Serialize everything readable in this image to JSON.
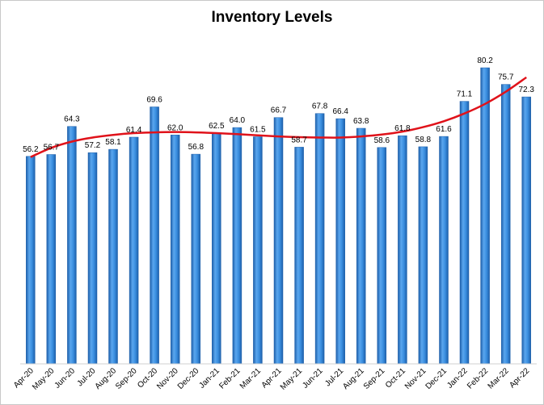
{
  "chart_data": {
    "type": "bar",
    "title": "Inventory Levels",
    "xlabel": "",
    "ylabel": "",
    "categories": [
      "Apr-20",
      "May-20",
      "Jun-20",
      "Jul-20",
      "Aug-20",
      "Sep-20",
      "Oct-20",
      "Nov-20",
      "Dec-20",
      "Jan-21",
      "Feb-21",
      "Mar-21",
      "Apr-21",
      "May-21",
      "Jun-21",
      "Jul-21",
      "Aug-21",
      "Sep-21",
      "Oct-21",
      "Nov-21",
      "Dec-21",
      "Jan-22",
      "Feb-22",
      "Mar-22",
      "Apr-22"
    ],
    "values": [
      56.2,
      56.7,
      64.3,
      57.2,
      58.1,
      61.4,
      69.6,
      62.0,
      56.8,
      62.5,
      64.0,
      61.5,
      66.7,
      58.7,
      67.8,
      66.4,
      63.8,
      58.6,
      61.8,
      58.8,
      61.6,
      71.1,
      80.2,
      75.7,
      72.3
    ],
    "value_labels": [
      "56.2",
      "56.7",
      "64.3",
      "57.2",
      "58.1",
      "61.4",
      "69.6",
      "62.0",
      "56.8",
      "62.5",
      "64.0",
      "61.5",
      "66.7",
      "58.7",
      "67.8",
      "66.4",
      "63.8",
      "58.6",
      "61.8",
      "58.8",
      "61.6",
      "71.1",
      "80.2",
      "75.7",
      "72.3"
    ],
    "trendline": {
      "type": "polynomial",
      "values": [
        56.0,
        58.5,
        60.2,
        61.3,
        62.0,
        62.5,
        62.7,
        62.8,
        62.7,
        62.5,
        62.2,
        61.9,
        61.6,
        61.4,
        61.3,
        61.3,
        61.6,
        62.1,
        62.9,
        64.1,
        65.7,
        67.8,
        70.4,
        73.7,
        77.6
      ]
    },
    "ylim": [
      0,
      85
    ],
    "grid": false,
    "legend": "none",
    "colors": {
      "bar_light": "#6fb3f0",
      "bar_mid": "#3b8fe0",
      "bar_dark": "#1d5faa",
      "trend": "#e0121a"
    }
  }
}
